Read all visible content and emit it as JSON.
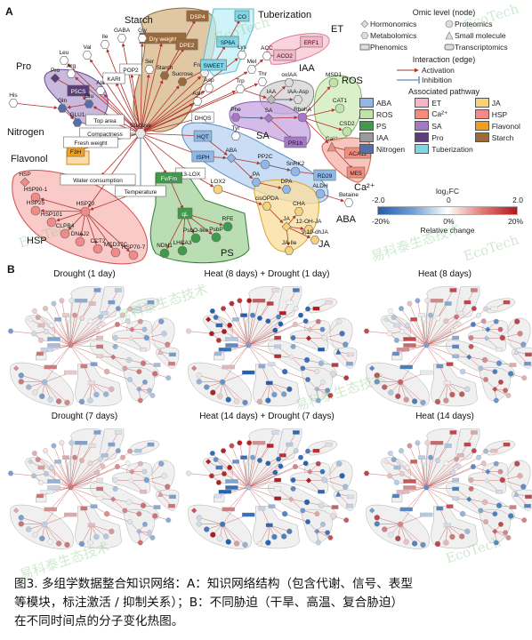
{
  "panel_a": {
    "letter": "A",
    "groups": {
      "starch": "Starch",
      "tuberization": "Tuberization",
      "et": "ET",
      "iaa": "IAA",
      "ros": "ROS",
      "pro": "Pro",
      "nitrogen": "Nitrogen",
      "flavonol": "Flavonol",
      "sa": "SA",
      "hsp": "HSP",
      "ps": "PS",
      "ja": "JA",
      "aba": "ABA",
      "ca": "Ca²⁺"
    },
    "nodes": {
      "glucose": "Glucose",
      "dsp4": "DSP4",
      "dry_weight": "Dry weight",
      "dpe2": "DPE2",
      "starch_node": "Starch",
      "sucrose": "Sucrose",
      "fructose": "Fructose",
      "co": "CO",
      "sp6a": "SP6A",
      "sweet": "SWEET",
      "acc": "ACC",
      "aco2": "ACO2",
      "erf1": "ERF1",
      "lys": "Lys",
      "met": "Met",
      "thr": "Thr",
      "oxiaa": "oxIAA",
      "iaa_asp": "IAA-Asp",
      "iaa_node": "IAA",
      "trp": "Trp",
      "msd1": "MSD1",
      "cat1": "CAT1",
      "csd2": "CSD2",
      "rbohA": "RbohA",
      "sa_node": "SA",
      "phe": "Phe",
      "pr1b": "PR1b",
      "ca_node": "Ca²⁺",
      "aca11": "ACA11",
      "me5": "ME5",
      "gaba": "GABA",
      "gly": "Gly",
      "ile": "Ile",
      "val": "Val",
      "leu": "Leu",
      "pop2": "POP2",
      "ser": "Ser",
      "kari": "KARI",
      "arg": "Arg",
      "ala": "Ala",
      "asp": "Asp",
      "asn": "Asn",
      "dhqs": "DHQS",
      "tyr": "Tyr",
      "pro_node": "Pro",
      "p5cs": "P5CS",
      "glu": "Glu",
      "gln": "Gln",
      "glu1": "GLU1",
      "his": "His",
      "top_area": "Top area",
      "compactness": "Compactness",
      "f3h": "F3H",
      "fresh_weight": "Fresh weight",
      "water_consumption": "Water consumption",
      "temperature": "Temperature",
      "hqt": "HQT",
      "isph": "ISPH",
      "aba_node": "ABA",
      "pp2c": "PP2C",
      "snrk2": "SnRK2",
      "rd29": "RD29",
      "pa": "PA",
      "dpa": "DPA",
      "aldh": "ALDH",
      "betaine": "Betaine",
      "lox13": "13-LOX",
      "fv_fm": "Fv/Fm",
      "lox2": "LOX2",
      "cisopda": "cisOPDA",
      "cha": "CHA",
      "ja_node": "JA",
      "oh_ja": "12-OH-JA",
      "diol_ja": "9,10-dhJA",
      "ja_ile": "JA-Ile",
      "hsp_node": "HSP",
      "hsp90": "HSP90-1",
      "hsp25": "HSP25",
      "hsp101": "HSP101",
      "hsp70": "HSP70",
      "clpb4": "CLPB4",
      "dnaj2": "DNAJ2",
      "cct2": "CCT2",
      "med37c": "MED37C",
      "hsp70_7": "HSP70-7",
      "ql": "qL",
      "rfe": "RFE",
      "psbp": "PsbP",
      "psbo": "PsbO-like",
      "lhca3": "LHCA3",
      "ndh1": "NDH1"
    }
  },
  "legend": {
    "omic_title": "Omic level (node)",
    "omic_items": [
      {
        "label": "Hormonomics",
        "shape": "diamond"
      },
      {
        "label": "Proteomics",
        "shape": "circle"
      },
      {
        "label": "Metabolomics",
        "shape": "hexagon"
      },
      {
        "label": "Small molecule",
        "shape": "triangle"
      },
      {
        "label": "Phenomics",
        "shape": "rect"
      },
      {
        "label": "Transcriptomics",
        "shape": "roundrect"
      }
    ],
    "edge_title": "Interaction (edge)",
    "edge_items": [
      {
        "label": "Activation",
        "type": "arrow"
      },
      {
        "label": "Inhibition",
        "type": "bar"
      }
    ],
    "pathway_title": "Associated pathway",
    "pathways": [
      {
        "label": "ABA",
        "color": "#8fb8e8"
      },
      {
        "label": "ET",
        "color": "#f7b6c8"
      },
      {
        "label": "JA",
        "color": "#f6d27a"
      },
      {
        "label": "ROS",
        "color": "#bfe3a8"
      },
      {
        "label": "Ca²⁺",
        "color": "#f58b7d"
      },
      {
        "label": "HSP",
        "color": "#f28a8a"
      },
      {
        "label": "PS",
        "color": "#3f9a4a"
      },
      {
        "label": "SA",
        "color": "#a678c9"
      },
      {
        "label": "Flavonol",
        "color": "#f0a020"
      },
      {
        "label": "IAA",
        "color": "#9a9a9a"
      },
      {
        "label": "Pro",
        "color": "#5a3d7a"
      },
      {
        "label": "Starch",
        "color": "#9b6a3a"
      },
      {
        "label": "Nitrogen",
        "color": "#5470a8"
      },
      {
        "label": "Tuberization",
        "color": "#7fd6e6"
      }
    ],
    "fc_title": "log₂FC",
    "fc_ticks": [
      "-2.0",
      "0",
      "2.0"
    ],
    "rc_ticks": [
      "-20%",
      "0%",
      "20%"
    ],
    "rc_title": "Relative change",
    "colors": {
      "neg": "#1f5fb0",
      "pos": "#b0191e",
      "activation": "#b2322e",
      "inhibition": "#3d6ea3"
    }
  },
  "panel_b": {
    "letter": "B",
    "conditions": [
      "Drought (1 day)",
      "Heat (8 days) + Drought (1 day)",
      "Heat (8 days)",
      "Drought (7 days)",
      "Heat (14 days) + Drought (7 days)",
      "Heat (14 days)"
    ]
  },
  "caption": {
    "line1": "图3. 多组学数据整合知识网络：A：知识网络结构（包含代谢、信号、表型",
    "line2": "等模块，标注激活 / 抑制关系）；B：不同胁迫（干旱、高温、复合胁迫）",
    "line3": "在不同时间点的分子变化热图。"
  },
  "watermark": {
    "text_en": "EcoTech",
    "text_cn": "易科泰生态技术"
  }
}
